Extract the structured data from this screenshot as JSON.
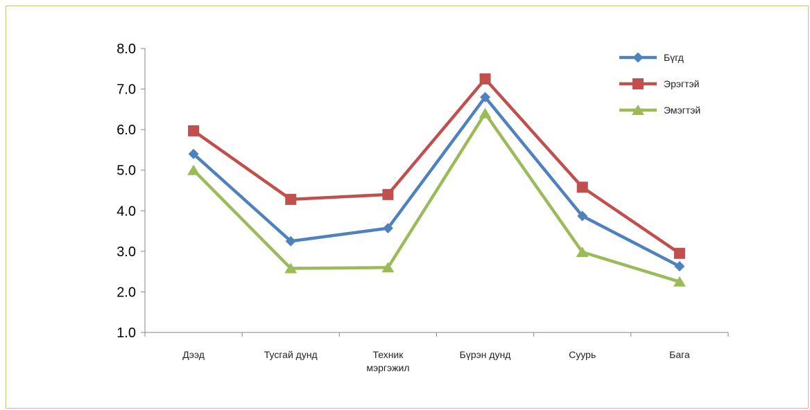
{
  "chart_data": {
    "type": "line",
    "categories": [
      [
        "Дээд"
      ],
      [
        "Тусгай дунд"
      ],
      [
        "Техник",
        "мэргэжил"
      ],
      [
        "Бүрэн дунд"
      ],
      [
        "Суурь"
      ],
      [
        "Бага"
      ]
    ],
    "series": [
      {
        "name": "Бүгд",
        "color": "#4f81bd",
        "marker": "diamond",
        "values": [
          5.4,
          3.25,
          3.57,
          6.8,
          3.87,
          2.63
        ]
      },
      {
        "name": "Эрэгтэй",
        "color": "#c0504d",
        "marker": "square",
        "values": [
          5.97,
          4.28,
          4.4,
          7.25,
          4.58,
          2.95
        ]
      },
      {
        "name": "Эмэгтэй",
        "color": "#9bbb59",
        "marker": "triangle",
        "values": [
          5.0,
          2.58,
          2.6,
          6.4,
          2.98,
          2.25
        ]
      }
    ],
    "ylim": [
      1.0,
      8.0
    ],
    "yticks": [
      "1.0",
      "2.0",
      "3.0",
      "4.0",
      "5.0",
      "6.0",
      "7.0",
      "8.0"
    ],
    "grid": false,
    "legend": "top-right",
    "title": "",
    "xlabel": "",
    "ylabel": ""
  }
}
